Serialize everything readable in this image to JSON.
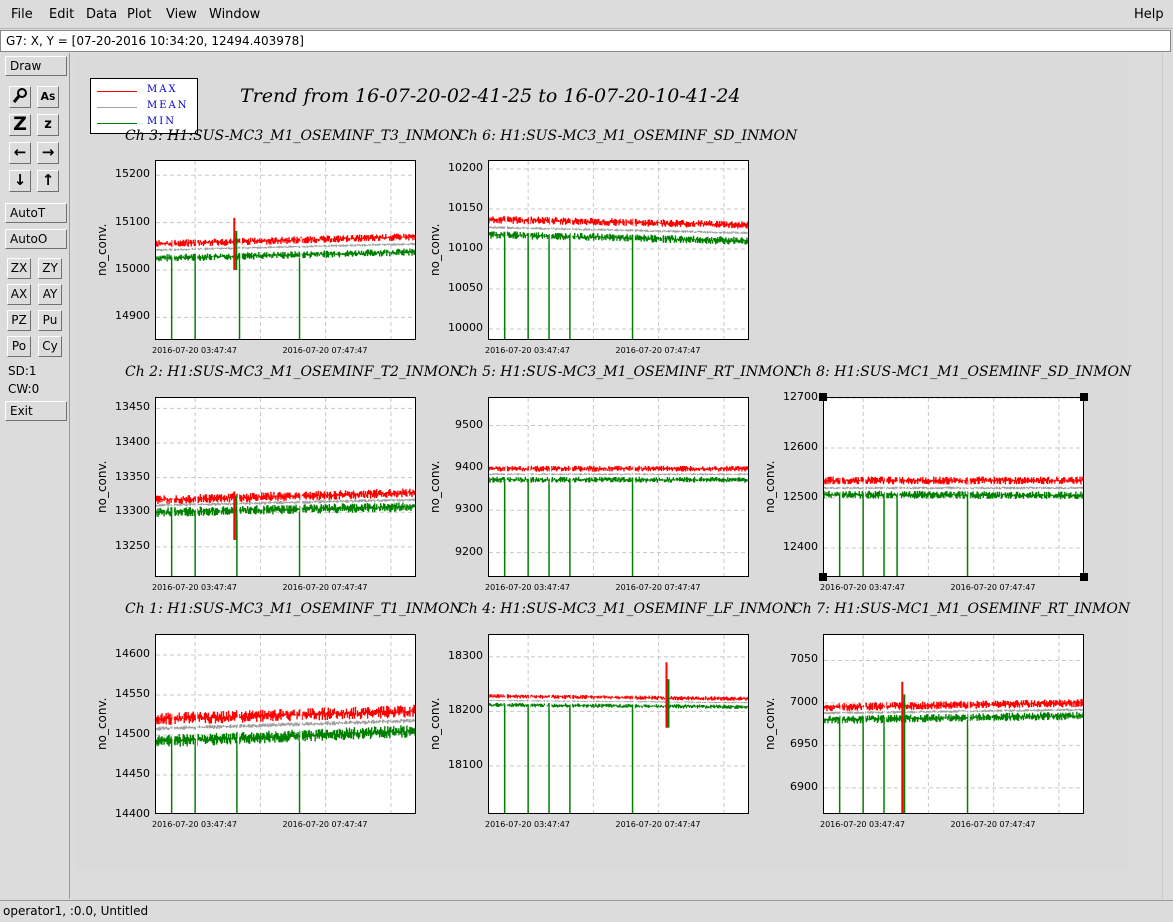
{
  "menu": {
    "file": "File",
    "edit": "Edit",
    "data": "Data",
    "plot": "Plot",
    "view": "View",
    "window": "Window",
    "help": "Help"
  },
  "coord_readout": "G7: X, Y = [07-20-2016 10:34:20, 12494.403978]",
  "toolbar": {
    "draw": "Draw",
    "autot": "AutoT",
    "autoo": "AutoO",
    "zx": "ZX",
    "zy": "ZY",
    "ax": "AX",
    "ay": "AY",
    "pz": "PZ",
    "pu": "Pu",
    "po": "Po",
    "cy": "Cy",
    "sd": "SD:1",
    "cw": "CW:0",
    "exit": "Exit",
    "icons": [
      "magnify-icon",
      "text-size-icon",
      "zoom-big-icon",
      "zoom-small-icon",
      "arrow-left-icon",
      "arrow-right-icon",
      "arrow-down-icon",
      "arrow-up-icon"
    ]
  },
  "legend": {
    "max": "MAX",
    "mean": "MEAN",
    "min": "MIN",
    "colors": {
      "max": "#ff0000",
      "mean": "#a0a0a0",
      "min": "#008000"
    }
  },
  "main_title": "Trend from 16-07-20-02-41-25 to 16-07-20-10-41-24",
  "status": "operator1, :0.0, Untitled",
  "chart_data": [
    {
      "id": "ch3",
      "type": "line",
      "title": "Ch 3: H1:SUS-MC3_M1_OSEMINF_T3_INMON",
      "ylabel": "no_conv.",
      "yticks": [
        "15200",
        "15100",
        "15000",
        "14900"
      ],
      "ylim": [
        14850,
        15230
      ],
      "xticks": [
        "2016-07-20 03:47:47",
        "2016-07-20 07:47:47"
      ],
      "max_level": [
        15055,
        15070
      ],
      "mean_level": [
        15042,
        15055
      ],
      "min_level": [
        15025,
        15038
      ],
      "noise": 8,
      "dropouts": [
        0.06,
        0.15,
        0.32,
        0.55
      ],
      "spike": {
        "pos": 0.3,
        "max": 15110,
        "min": 15000
      }
    },
    {
      "id": "ch6",
      "type": "line",
      "title": "Ch 6: H1:SUS-MC3_M1_OSEMINF_SD_INMON",
      "ylabel": "no_conv.",
      "yticks": [
        "10200",
        "10150",
        "10100",
        "10050",
        "10000"
      ],
      "ylim": [
        9985,
        10210
      ],
      "xticks": [
        "2016-07-20 03:47:47",
        "2016-07-20 07:47:47"
      ],
      "max_level": [
        10137,
        10130
      ],
      "mean_level": [
        10127,
        10120
      ],
      "min_level": [
        10118,
        10110
      ],
      "noise": 5,
      "dropouts": [
        0.06,
        0.15,
        0.23,
        0.31,
        0.55
      ]
    },
    {
      "id": "ch2",
      "type": "line",
      "title": "Ch 2: H1:SUS-MC3_M1_OSEMINF_T2_INMON",
      "ylabel": "no_conv.",
      "yticks": [
        "13450",
        "13400",
        "13350",
        "13300",
        "13250"
      ],
      "ylim": [
        13205,
        13465
      ],
      "xticks": [
        "2016-07-20 03:47:47",
        "2016-07-20 07:47:47"
      ],
      "max_level": [
        13318,
        13328
      ],
      "mean_level": [
        13310,
        13318
      ],
      "min_level": [
        13300,
        13308
      ],
      "noise": 7,
      "dropouts": [
        0.06,
        0.15,
        0.31,
        0.55
      ],
      "spike": {
        "pos": 0.3,
        "max": 13330,
        "min": 13260
      }
    },
    {
      "id": "ch5",
      "type": "line",
      "title": "Ch 5: H1:SUS-MC3_M1_OSEMINF_RT_INMON",
      "ylabel": "no_conv.",
      "yticks": [
        "9500",
        "9400",
        "9300",
        "9200"
      ],
      "ylim": [
        9140,
        9565
      ],
      "xticks": [
        "2016-07-20 03:47:47",
        "2016-07-20 07:47:47"
      ],
      "max_level": [
        9398,
        9398
      ],
      "mean_level": [
        9385,
        9385
      ],
      "min_level": [
        9372,
        9372
      ],
      "noise": 7,
      "dropouts": [
        0.06,
        0.15,
        0.23,
        0.31,
        0.55
      ]
    },
    {
      "id": "ch8",
      "type": "line",
      "title": "Ch 8: H1:SUS-MC1_M1_OSEMINF_SD_INMON",
      "ylabel": "no_conv.",
      "yticks": [
        "12700",
        "12600",
        "12500",
        "12400"
      ],
      "ylim": [
        12340,
        12700
      ],
      "xticks": [
        "2016-07-20 03:47:47",
        "2016-07-20 07:47:47"
      ],
      "max_level": [
        12535,
        12535
      ],
      "mean_level": [
        12520,
        12520
      ],
      "min_level": [
        12507,
        12505
      ],
      "noise": 8,
      "dropouts": [
        0.06,
        0.15,
        0.23,
        0.28,
        0.55
      ],
      "selected": true
    },
    {
      "id": "ch1",
      "type": "line",
      "title": "Ch 1: H1:SUS-MC3_M1_OSEMINF_T1_INMON",
      "ylabel": "no_conv.",
      "yticks": [
        "14600",
        "14550",
        "14500",
        "14450",
        "14400"
      ],
      "ylim": [
        14400,
        14625
      ],
      "xticks": [
        "2016-07-20 03:47:47",
        "2016-07-20 07:47:47"
      ],
      "max_level": [
        14520,
        14530
      ],
      "mean_level": [
        14508,
        14518
      ],
      "min_level": [
        14492,
        14505
      ],
      "noise": 8,
      "dropouts": [
        0.06,
        0.15,
        0.31,
        0.55
      ]
    },
    {
      "id": "ch4",
      "type": "line",
      "title": "Ch 4: H1:SUS-MC3_M1_OSEMINF_LF_INMON",
      "ylabel": "no_conv.",
      "yticks": [
        "18300",
        "18200",
        "18100"
      ],
      "ylim": [
        18010,
        18340
      ],
      "xticks": [
        "2016-07-20 03:47:47",
        "2016-07-20 07:47:47"
      ],
      "max_level": [
        18228,
        18223
      ],
      "mean_level": [
        18220,
        18216
      ],
      "min_level": [
        18212,
        18208
      ],
      "noise": 4,
      "dropouts": [
        0.06,
        0.15,
        0.23,
        0.31,
        0.55
      ],
      "spike": {
        "pos": 0.68,
        "max": 18290,
        "min": 18170
      }
    },
    {
      "id": "ch7",
      "type": "line",
      "title": "Ch 7: H1:SUS-MC1_M1_OSEMINF_RT_INMON",
      "ylabel": "no_conv.",
      "yticks": [
        "7050",
        "7000",
        "6950",
        "6900"
      ],
      "ylim": [
        6868,
        7080
      ],
      "xticks": [
        "2016-07-20 03:47:47",
        "2016-07-20 07:47:47"
      ],
      "max_level": [
        6995,
        7000
      ],
      "mean_level": [
        6988,
        6992
      ],
      "min_level": [
        6980,
        6985
      ],
      "noise": 5,
      "dropouts": [
        0.06,
        0.15,
        0.23,
        0.55
      ],
      "spike": {
        "pos": 0.3,
        "max": 7025,
        "min": 6870
      }
    }
  ]
}
